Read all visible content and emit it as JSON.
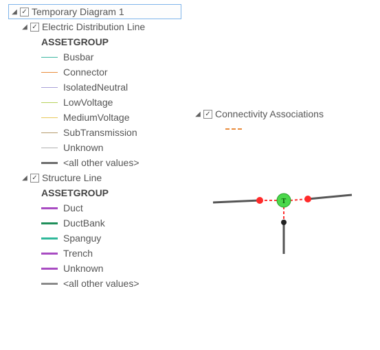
{
  "root": {
    "label": "Temporary Diagram 1",
    "checked": true,
    "expanded": true,
    "selected": true
  },
  "layers": [
    {
      "label": "Electric Distribution Line",
      "checked": true,
      "expanded": true,
      "heading": "ASSETGROUP",
      "items": [
        {
          "label": "Busbar",
          "color": "#3bb6a0",
          "width": 1
        },
        {
          "label": "Connector",
          "color": "#e98b3a",
          "width": 1
        },
        {
          "label": "IsolatedNeutral",
          "color": "#a9a0d8",
          "width": 1
        },
        {
          "label": "LowVoltage",
          "color": "#b6d25a",
          "width": 1
        },
        {
          "label": "MediumVoltage",
          "color": "#e8c85a",
          "width": 1
        },
        {
          "label": "SubTransmission",
          "color": "#b59b6e",
          "width": 1
        },
        {
          "label": "Unknown",
          "color": "#b0b0b0",
          "width": 1
        },
        {
          "label": "<all other values>",
          "color": "#6b6b6b",
          "width": 3
        }
      ]
    },
    {
      "label": "Structure Line",
      "checked": true,
      "expanded": true,
      "heading": "ASSETGROUP",
      "items": [
        {
          "label": "Duct",
          "color": "#a84bc2",
          "width": 3
        },
        {
          "label": "DuctBank",
          "color": "#1f8f5a",
          "width": 3
        },
        {
          "label": "Spanguy",
          "color": "#2fb89a",
          "width": 3
        },
        {
          "label": "Trench",
          "color": "#a84bc2",
          "width": 3
        },
        {
          "label": "Unknown",
          "color": "#a84bc2",
          "width": 3
        },
        {
          "label": "<all other values>",
          "color": "#8a8a8a",
          "width": 3
        }
      ]
    }
  ],
  "right": {
    "label": "Connectivity Associations",
    "checked": true,
    "expanded": true,
    "dash_color": "#e98b3a"
  },
  "diagram": {
    "edge_color": "#555555",
    "dash_color": "#ff3030",
    "center_node": {
      "fill": "#4bd84b",
      "stroke": "#2a9f2a",
      "text": "T"
    },
    "end_node_fill": "#ff2a2a",
    "bottom_node_fill": "#222222"
  }
}
